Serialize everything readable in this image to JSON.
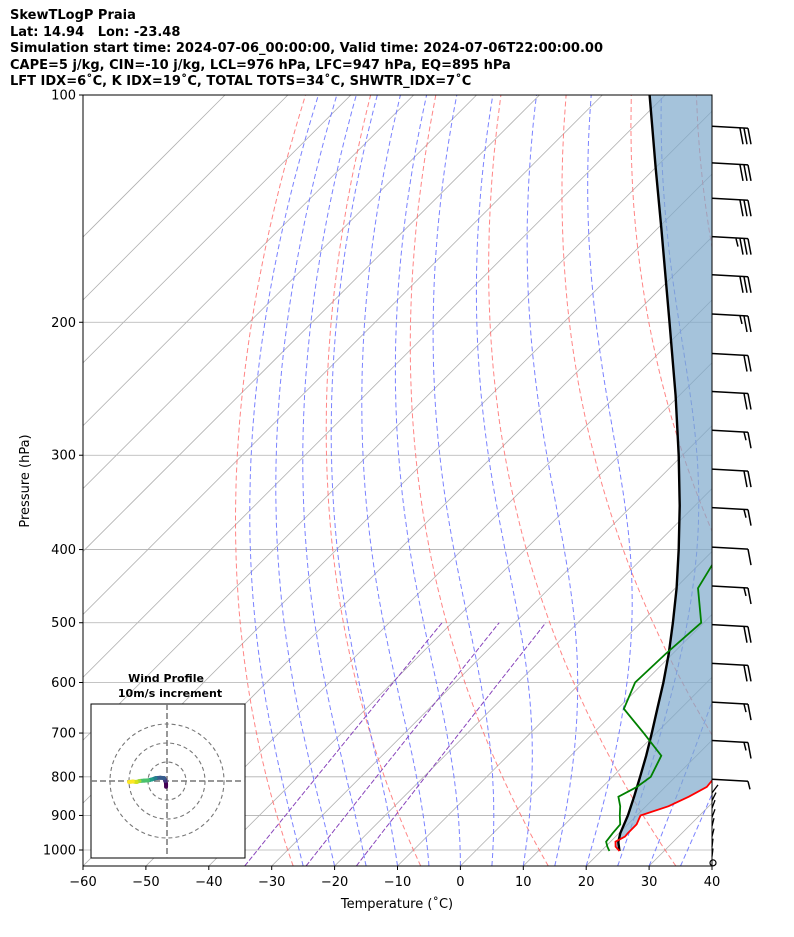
{
  "header": {
    "line1": "SkewTLogP Praia",
    "line2": "Lat: 14.94   Lon: -23.48",
    "line3": "Simulation start time: 2024-07-06_00:00:00, Valid time: 2024-07-06T22:00:00.00",
    "line4": "CAPE=5 j/kg, CIN=-10 j/kg, LCL=976 hPa, LFC=947 hPa, EQ=895 hPa",
    "line5": "LFT IDX=6˚C, K IDX=19˚C, TOTAL TOTS=34˚C, SHWTR_IDX=7˚C"
  },
  "chart_data": {
    "type": "skew-t",
    "xlabel": "Temperature (˚C)",
    "ylabel": "Pressure (hPa)",
    "xlim": [
      -60,
      40
    ],
    "ylim": [
      1050,
      100
    ],
    "xticks": [
      -60,
      -50,
      -40,
      -30,
      -20,
      -10,
      0,
      10,
      20,
      30,
      40
    ],
    "yticks": [
      100,
      200,
      300,
      400,
      500,
      600,
      700,
      800,
      900,
      1000
    ],
    "colors": {
      "temperature": "#ff0000",
      "dewpoint": "#008000",
      "parcel": "#000000",
      "cape_fill": "#7fa9cc",
      "isotherm": "#b0b0b0",
      "dry_adiabat": "#ff6666",
      "moist_adiabat": "#6b74ff",
      "mixing_ratio": "#8844bb"
    },
    "temperature": [
      [
        1003,
        22.9
      ],
      [
        990,
        21.6
      ],
      [
        975,
        20.8
      ],
      [
        960,
        21.5
      ],
      [
        950,
        21.4
      ],
      [
        925,
        21.4
      ],
      [
        900,
        20.6
      ],
      [
        875,
        23.6
      ],
      [
        850,
        25.3
      ],
      [
        825,
        26.6
      ],
      [
        800,
        26.3
      ],
      [
        750,
        25.0
      ],
      [
        700,
        23.3
      ],
      [
        650,
        21.6
      ],
      [
        600,
        20.1
      ],
      [
        550,
        17.8
      ],
      [
        500,
        14.3
      ],
      [
        450,
        11.1
      ],
      [
        400,
        7.9
      ],
      [
        350,
        3.4
      ],
      [
        300,
        -2.2
      ],
      [
        250,
        -8.8
      ],
      [
        200,
        -18.0
      ],
      [
        150,
        -29.6
      ],
      [
        130,
        -35.6
      ],
      [
        115,
        -39.8
      ],
      [
        100,
        -42.5
      ]
    ],
    "dewpoint": [
      [
        1003,
        21.3
      ],
      [
        990,
        20.3
      ],
      [
        975,
        19.3
      ],
      [
        950,
        19.0
      ],
      [
        925,
        18.8
      ],
      [
        900,
        17.3
      ],
      [
        875,
        15.9
      ],
      [
        850,
        14.1
      ],
      [
        825,
        15.5
      ],
      [
        800,
        16.1
      ],
      [
        750,
        14.4
      ],
      [
        700,
        8.0
      ],
      [
        650,
        1.0
      ],
      [
        600,
        -1.4
      ],
      [
        550,
        -1.1
      ],
      [
        500,
        -0.4
      ],
      [
        450,
        -6.4
      ],
      [
        400,
        -8.8
      ],
      [
        350,
        -12.6
      ],
      [
        320,
        -19.5
      ],
      [
        290,
        -17.5
      ],
      [
        270,
        -18.0
      ],
      [
        250,
        -20.0
      ],
      [
        200,
        -27.3
      ],
      [
        150,
        -38.6
      ],
      [
        130,
        -43.9
      ],
      [
        115,
        -43.5
      ],
      [
        100,
        -46.0
      ]
    ],
    "parcel": [
      [
        1003,
        22.9
      ],
      [
        976,
        21.3
      ],
      [
        950,
        20.2
      ],
      [
        900,
        18.6
      ],
      [
        850,
        16.6
      ],
      [
        800,
        14.4
      ],
      [
        750,
        12.0
      ],
      [
        700,
        9.3
      ],
      [
        650,
        6.3
      ],
      [
        600,
        3.1
      ],
      [
        550,
        -0.6
      ],
      [
        500,
        -4.9
      ],
      [
        450,
        -9.8
      ],
      [
        400,
        -15.6
      ],
      [
        350,
        -22.4
      ],
      [
        300,
        -30.6
      ],
      [
        250,
        -40.6
      ],
      [
        200,
        -53.2
      ],
      [
        150,
        -69.5
      ],
      [
        125,
        -79.9
      ],
      [
        100,
        -92.5
      ]
    ],
    "wind_barbs": [
      {
        "p": 110,
        "spd_kt": 30
      },
      {
        "p": 123,
        "spd_kt": 30
      },
      {
        "p": 137,
        "spd_kt": 30
      },
      {
        "p": 154,
        "spd_kt": 35
      },
      {
        "p": 173,
        "spd_kt": 30
      },
      {
        "p": 195,
        "spd_kt": 25
      },
      {
        "p": 220,
        "spd_kt": 20
      },
      {
        "p": 247,
        "spd_kt": 20
      },
      {
        "p": 278,
        "spd_kt": 15
      },
      {
        "p": 313,
        "spd_kt": 20
      },
      {
        "p": 352,
        "spd_kt": 15
      },
      {
        "p": 397,
        "spd_kt": 10
      },
      {
        "p": 447,
        "spd_kt": 15
      },
      {
        "p": 503,
        "spd_kt": 20
      },
      {
        "p": 566,
        "spd_kt": 20
      },
      {
        "p": 637,
        "spd_kt": 15
      },
      {
        "p": 716,
        "spd_kt": 15
      },
      {
        "p": 806,
        "spd_kt": 5
      }
    ],
    "inset": {
      "title_line1": "Wind Profile",
      "title_line2": "10m/s increment",
      "rings_ms": [
        10,
        20,
        30
      ],
      "hodograph_uv": [
        [
          -0.5,
          -3.0
        ],
        [
          -0.5,
          -1.5
        ],
        [
          -0.8,
          0.0
        ],
        [
          -1.5,
          1.5
        ],
        [
          -3.5,
          1.7
        ],
        [
          -6.0,
          1.5
        ],
        [
          -8.0,
          0.8
        ],
        [
          -10.0,
          0.3
        ],
        [
          -12.0,
          0.2
        ],
        [
          -14.5,
          0.0
        ],
        [
          -16.0,
          -0.5
        ],
        [
          -18.0,
          -0.3
        ],
        [
          -20.0,
          -0.5
        ]
      ]
    }
  }
}
